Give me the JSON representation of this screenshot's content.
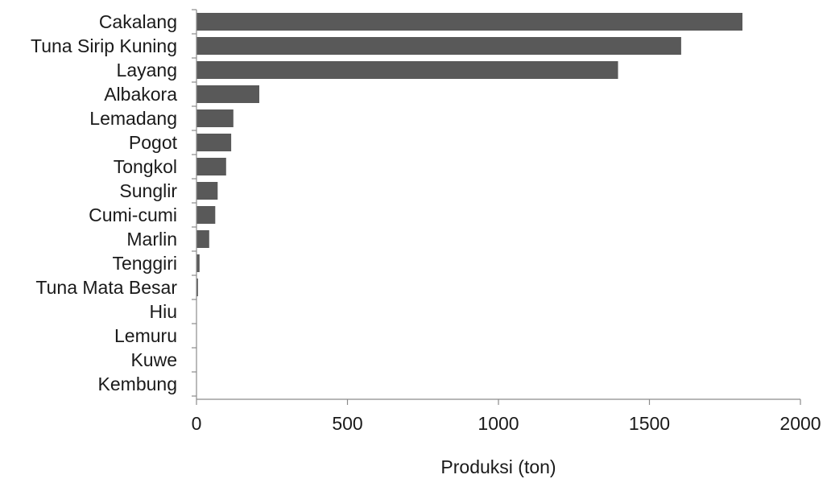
{
  "chart_data": {
    "type": "bar",
    "orientation": "horizontal",
    "categories": [
      "Cakalang",
      "Tuna Sirip Kuning",
      "Layang",
      "Albakora",
      "Lemadang",
      "Pogot",
      "Tongkol",
      "Sunglir",
      "Cumi-cumi",
      "Marlin",
      "Tenggiri",
      "Tuna Mata Besar",
      "Hiu",
      "Lemuru",
      "Kuwe",
      "Kembung"
    ],
    "values": [
      1808,
      1605,
      1396,
      208,
      122,
      115,
      98,
      70,
      62,
      42,
      10,
      5,
      1,
      1,
      1,
      1
    ],
    "xlabel": "Produksi (ton)",
    "ylabel": "",
    "xlim": [
      0,
      2000
    ],
    "xticks": [
      "0",
      "500",
      "1000",
      "1500",
      "2000"
    ],
    "grid": false,
    "bar_color": "#595959",
    "axis_color": "#8c8c8c"
  }
}
